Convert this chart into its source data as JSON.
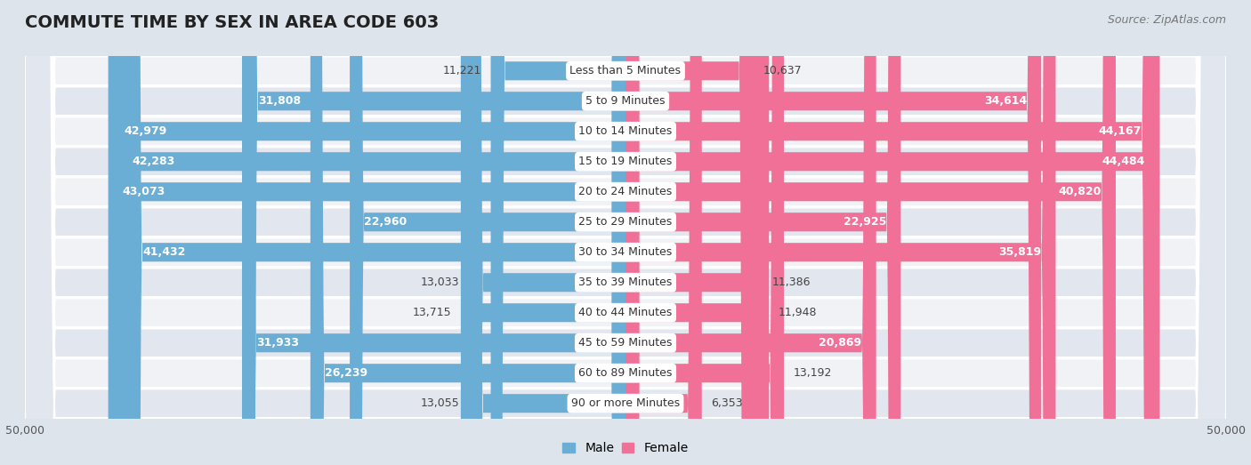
{
  "title": "COMMUTE TIME BY SEX IN AREA CODE 603",
  "source": "Source: ZipAtlas.com",
  "categories": [
    "Less than 5 Minutes",
    "5 to 9 Minutes",
    "10 to 14 Minutes",
    "15 to 19 Minutes",
    "20 to 24 Minutes",
    "25 to 29 Minutes",
    "30 to 34 Minutes",
    "35 to 39 Minutes",
    "40 to 44 Minutes",
    "45 to 59 Minutes",
    "60 to 89 Minutes",
    "90 or more Minutes"
  ],
  "male_values": [
    11221,
    31808,
    42979,
    42283,
    43073,
    22960,
    41432,
    13033,
    13715,
    31933,
    26239,
    13055
  ],
  "female_values": [
    10637,
    34614,
    44167,
    44484,
    40820,
    22925,
    35819,
    11386,
    11948,
    20869,
    13192,
    6353
  ],
  "male_color": "#6aaed6",
  "female_color": "#f07098",
  "male_color_light": "#aacce8",
  "female_color_light": "#f8b8cc",
  "xlim": 50000,
  "fig_bg": "#dde4ec",
  "row_bg_light": "#f0f2f6",
  "row_bg_dark": "#e2e6ee",
  "bar_height": 0.62,
  "title_fontsize": 14,
  "tick_fontsize": 9,
  "label_fontsize": 9,
  "category_fontsize": 9,
  "source_fontsize": 9,
  "inside_label_threshold": 15000
}
